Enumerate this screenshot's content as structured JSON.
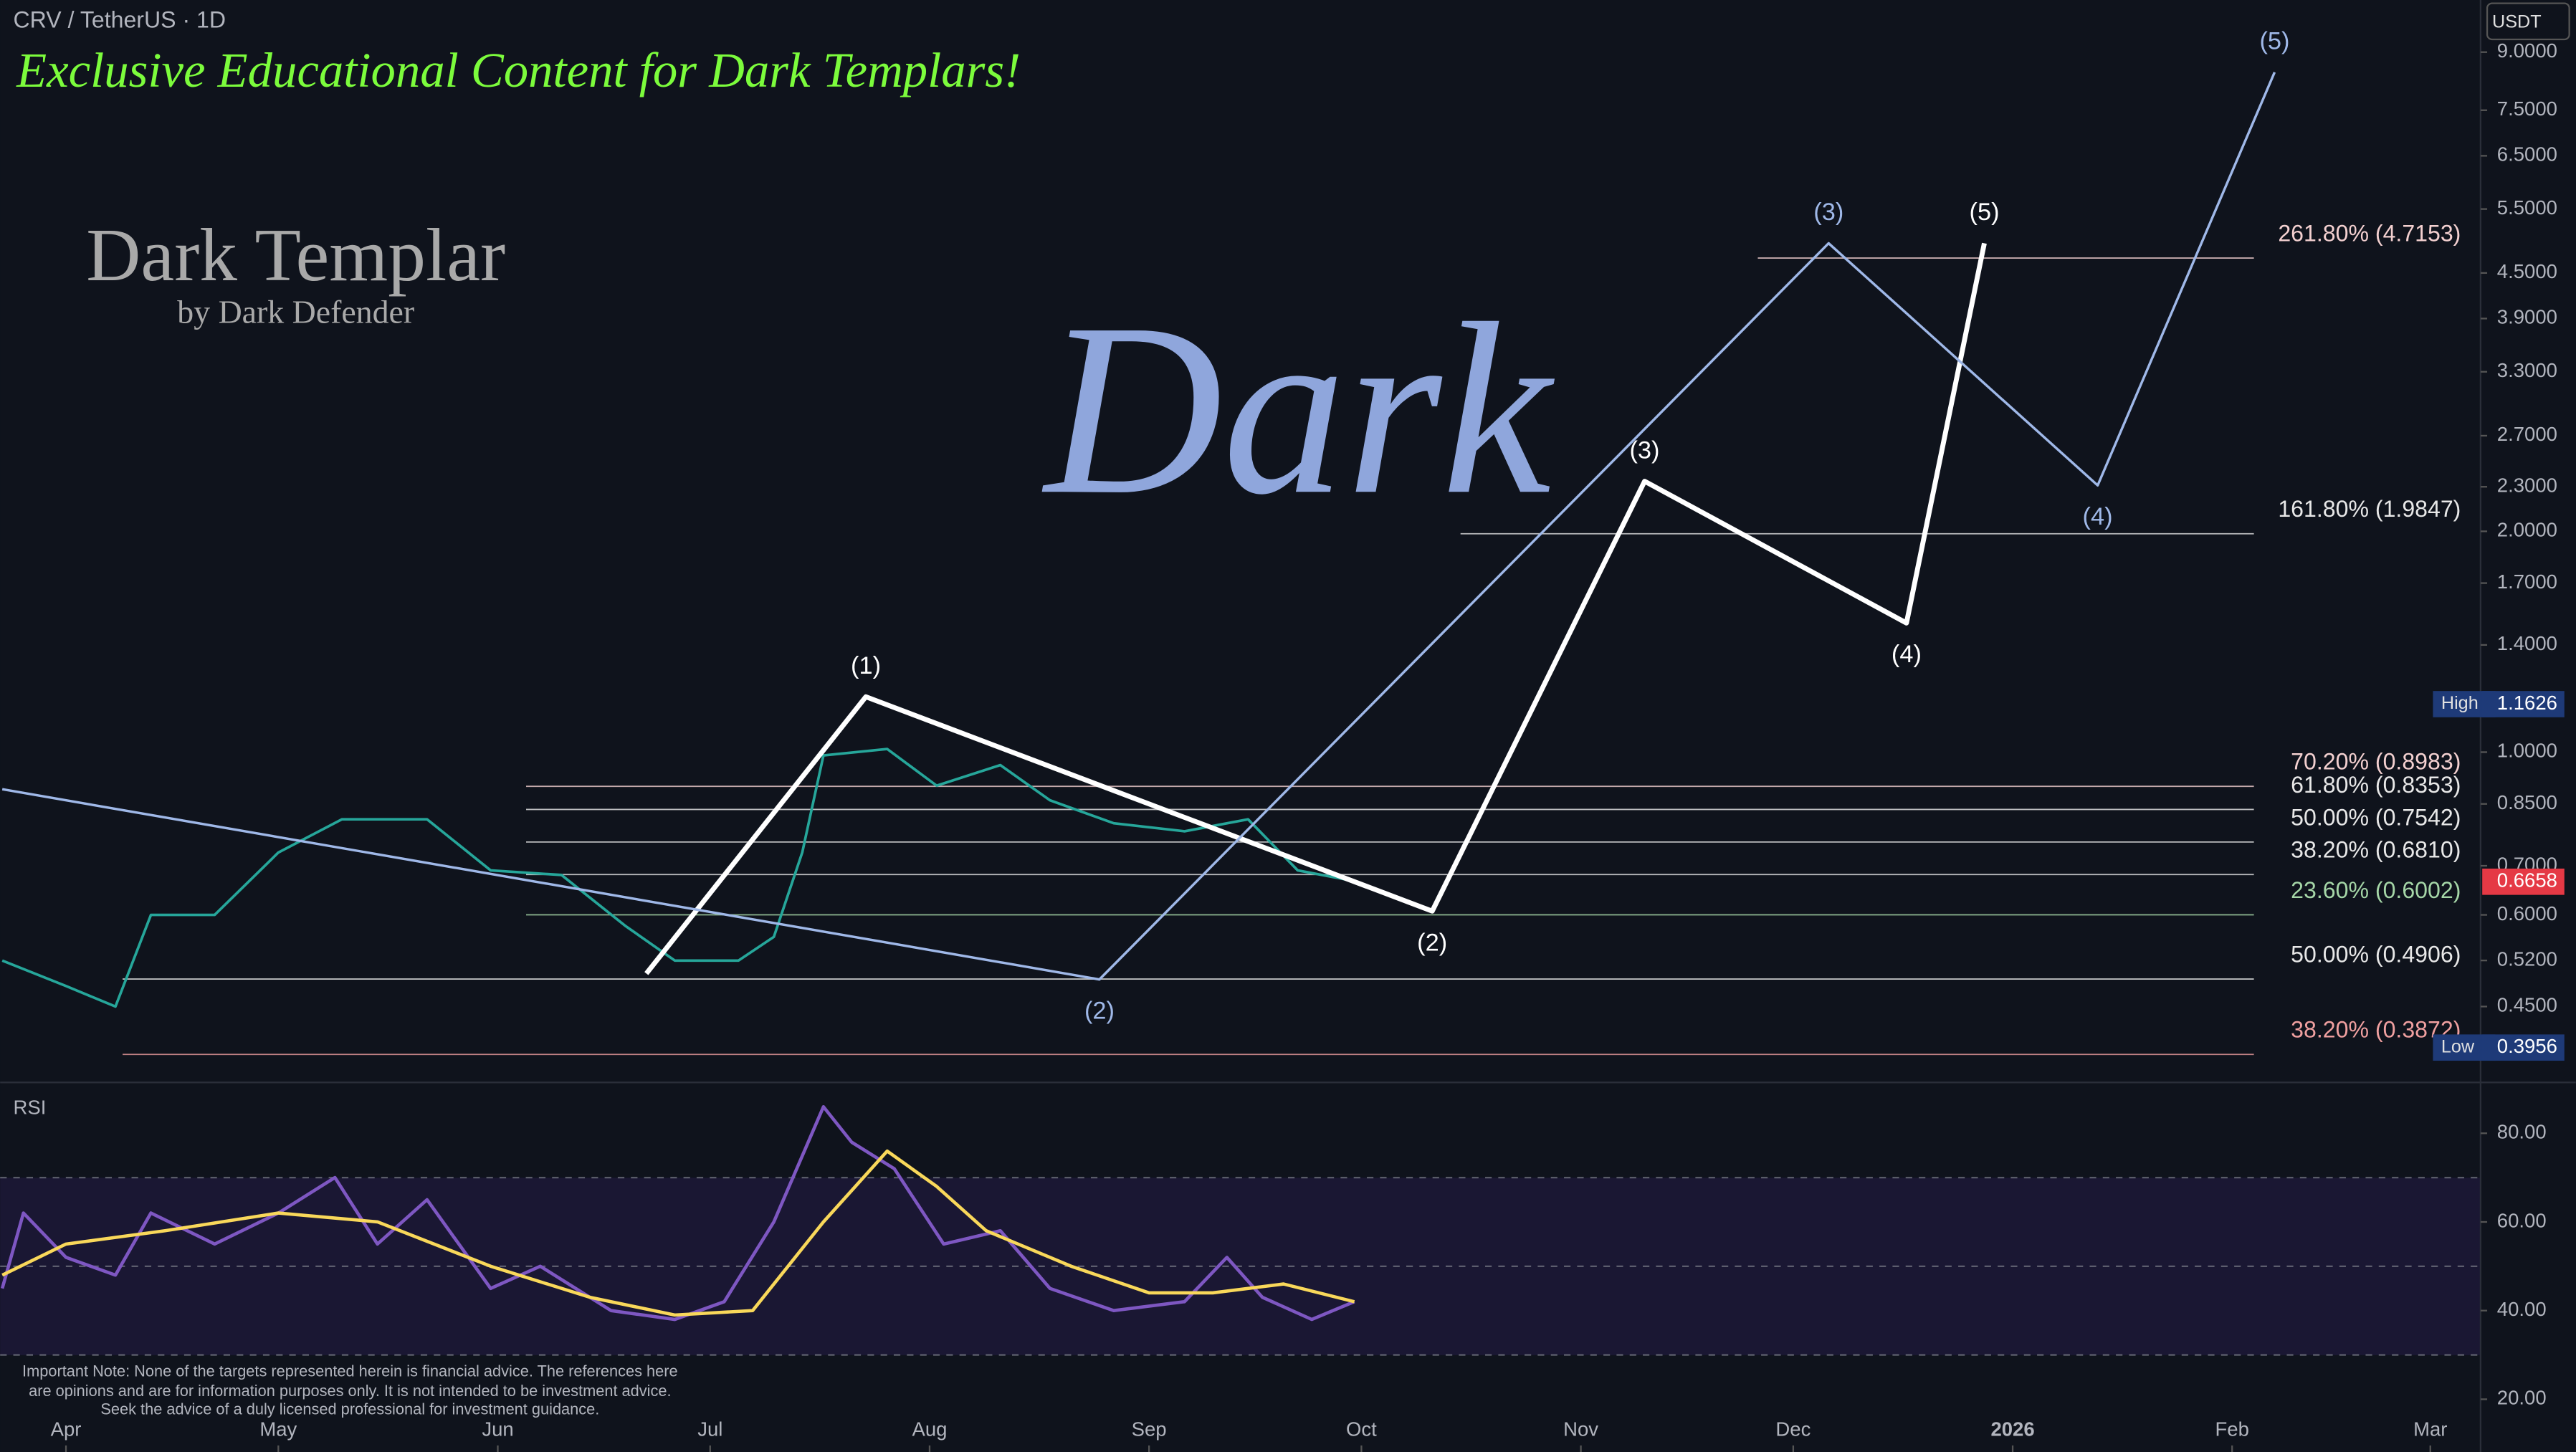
{
  "header": {
    "symbol": "CRV / TetherUS · 1D",
    "banner": "Exclusive Educational Content for Dark Templars!",
    "logo": "Dark Templar",
    "logo_sub": "by Dark Defender",
    "watermark": "Dark",
    "currency": "USDT",
    "rsi_title": "RSI",
    "disclaimer": "Important Note: None of the targets represented herein is financial advice. The references here are opinions and are for information purposes only. It is not intended to be investment advice. Seek the advice of a duly licensed professional for investment guidance."
  },
  "chart_data": {
    "type": "line",
    "ylog": true,
    "xlim": [
      -9.3,
      341.1
    ],
    "ylim": [
      0.362,
      10.6
    ],
    "xticks": [
      {
        "value": 0,
        "label": "Apr"
      },
      {
        "value": 30,
        "label": "May"
      },
      {
        "value": 61,
        "label": "Jun"
      },
      {
        "value": 91,
        "label": "Jul"
      },
      {
        "value": 122,
        "label": "Aug"
      },
      {
        "value": 153,
        "label": "Sep"
      },
      {
        "value": 183,
        "label": "Oct"
      },
      {
        "value": 214,
        "label": "Nov"
      },
      {
        "value": 244,
        "label": "Dec"
      },
      {
        "value": 275,
        "label": "2026"
      },
      {
        "value": 306,
        "label": "Feb"
      },
      {
        "value": 334,
        "label": "Mar"
      }
    ],
    "yticks": [
      {
        "value": 9,
        "label": "9.0000"
      },
      {
        "value": 7.5,
        "label": "7.5000"
      },
      {
        "value": 6.5,
        "label": "6.5000"
      },
      {
        "value": 5.5,
        "label": "5.5000"
      },
      {
        "value": 4.5,
        "label": "4.5000"
      },
      {
        "value": 3.9,
        "label": "3.9000"
      },
      {
        "value": 3.3,
        "label": "3.3000"
      },
      {
        "value": 2.7,
        "label": "2.7000"
      },
      {
        "value": 2.3,
        "label": "2.3000"
      },
      {
        "value": 2,
        "label": "2.0000"
      },
      {
        "value": 1.7,
        "label": "1.7000"
      },
      {
        "value": 1.4,
        "label": "1.4000"
      },
      {
        "value": 1,
        "label": "1.0000"
      },
      {
        "value": 0.85,
        "label": "0.8500"
      },
      {
        "value": 0.7,
        "label": "0.7000"
      },
      {
        "value": 0.6,
        "label": "0.6000"
      },
      {
        "value": 0.52,
        "label": "0.5200"
      },
      {
        "value": 0.45,
        "label": "0.4500"
      }
    ],
    "series": [
      {
        "color": "#26a69a",
        "x": [
          -9,
          0,
          7,
          12,
          21,
          30,
          39,
          51,
          60,
          70,
          79,
          86,
          95,
          100,
          104,
          107,
          116,
          123,
          132,
          139,
          148,
          158,
          167,
          174,
          181
        ],
        "values": [
          0.52,
          0.48,
          0.45,
          0.6,
          0.6,
          0.73,
          0.81,
          0.81,
          0.69,
          0.68,
          0.58,
          0.52,
          0.52,
          0.56,
          0.73,
          0.99,
          1.01,
          0.9,
          0.96,
          0.86,
          0.8,
          0.78,
          0.81,
          0.69,
          0.67
        ]
      }
    ],
    "waves": [
      {
        "color": "#ffffff",
        "x": [
          82,
          113,
          193,
          223,
          260,
          271
        ],
        "values": [
          0.499,
          1.19,
          0.607,
          2.34,
          1.5,
          4.94
        ],
        "labels": [
          null,
          "(1)",
          "(2)",
          "(3)",
          "(4)",
          "(5)"
        ]
      },
      {
        "color": "#9fb8e8",
        "x": [
          -9,
          146,
          249,
          287,
          312
        ],
        "values": [
          0.89,
          0.49,
          4.94,
          2.31,
          8.45
        ],
        "labels": [
          null,
          "(2)",
          "(3)",
          "(4)",
          "(5)"
        ]
      }
    ],
    "fib_levels": [
      {
        "label": "261.80% (4.7153)",
        "value": 4.7153,
        "color": "#f3d0d0",
        "from": 239
      }
    ],
    "fib_levels2": [
      {
        "label": "161.80% (1.9847)",
        "value": 1.9847,
        "color": "#e8e8e8",
        "from": 197
      },
      {
        "label": "70.20% (0.8983)",
        "value": 0.8983,
        "color": "#f3d0d0",
        "from": 65
      },
      {
        "label": "61.80% (0.8353)",
        "value": 0.8353,
        "color": "#e8e8e8",
        "from": 65
      },
      {
        "label": "50.00% (0.7542)",
        "value": 0.7542,
        "color": "#e8e8e8",
        "from": 65
      },
      {
        "label": "38.20% (0.6810)",
        "value": 0.681,
        "color": "#e8e8e8",
        "from": 65
      },
      {
        "label": "23.60% (0.6002)",
        "value": 0.6002,
        "color": "#a5d6a7",
        "from": 65
      },
      {
        "label": "50.00% (0.4906)",
        "value": 0.4906,
        "color": "#e8e8e8",
        "from": 8
      },
      {
        "label": "38.20% (0.3872)",
        "value": 0.3872,
        "color": "#f0a0a0",
        "from": 8
      }
    ],
    "price_tags": [
      {
        "name": "High",
        "value": 1.1626,
        "color": "#1e3a78"
      },
      {
        "name": "Low",
        "value": 0.3956,
        "color": "#1e3a78"
      },
      {
        "value": 0.6658,
        "color": "#e53945"
      }
    ]
  },
  "rsi_data": {
    "type": "line",
    "ylim": [
      8.1,
      91.1
    ],
    "yticks": [
      {
        "value": 80,
        "label": "80.00"
      },
      {
        "value": 60,
        "label": "60.00"
      },
      {
        "value": 40,
        "label": "40.00"
      },
      {
        "value": 20,
        "label": "20.00"
      }
    ],
    "band": [
      30,
      70,
      50
    ],
    "series": [
      {
        "color": "#7e57c2",
        "x": [
          -9,
          -6,
          0,
          7,
          12,
          21,
          30,
          38,
          44,
          51,
          60,
          67,
          77,
          86,
          93,
          100,
          107,
          111,
          117,
          124,
          132,
          139,
          148,
          158,
          164,
          169,
          176,
          182
        ],
        "values": [
          45,
          62,
          52,
          48,
          62,
          55,
          62,
          70,
          55,
          65,
          45,
          50,
          40,
          38,
          42,
          60,
          86,
          78,
          72,
          55,
          58,
          45,
          40,
          42,
          52,
          43,
          38,
          42
        ]
      },
      {
        "color": "#f9d85a",
        "x": [
          -9,
          0,
          14,
          30,
          44,
          60,
          74,
          86,
          97,
          107,
          116,
          123,
          130,
          142,
          153,
          162,
          172,
          182
        ],
        "values": [
          48,
          55,
          58,
          62,
          60,
          50,
          43,
          39,
          40,
          60,
          76,
          68,
          58,
          50,
          44,
          44,
          46,
          42
        ]
      }
    ]
  }
}
